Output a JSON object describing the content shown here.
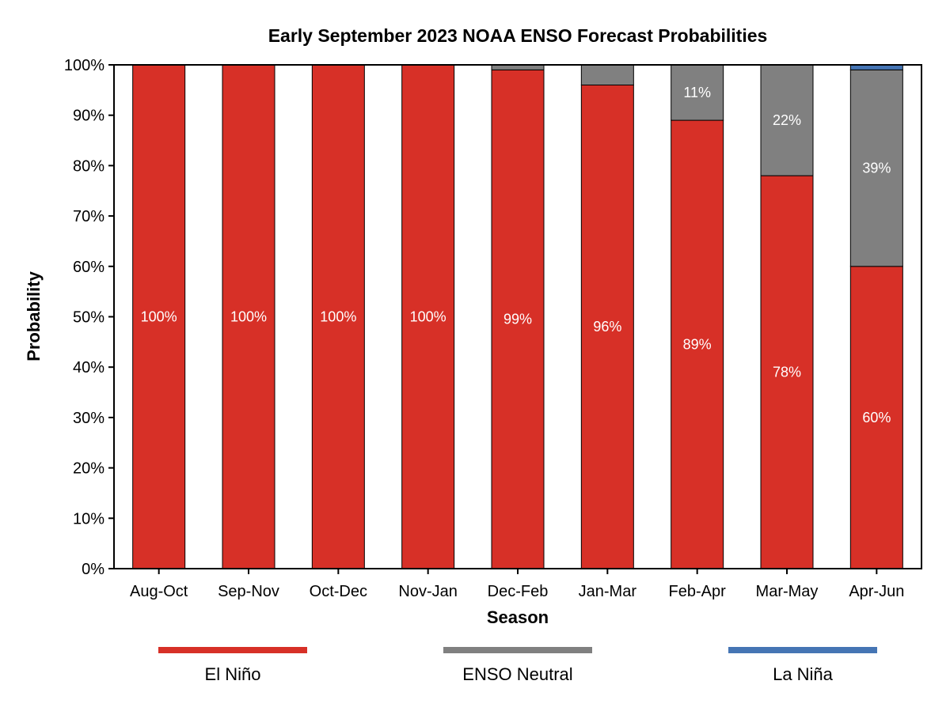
{
  "chart_data": {
    "type": "bar",
    "stacked": true,
    "title": "Early September 2023 NOAA ENSO Forecast Probabilities",
    "xlabel": "Season",
    "ylabel": "Probability",
    "ylim": [
      0,
      100
    ],
    "yticks": [
      0,
      10,
      20,
      30,
      40,
      50,
      60,
      70,
      80,
      90,
      100
    ],
    "ytick_labels": [
      "0%",
      "10%",
      "20%",
      "30%",
      "40%",
      "50%",
      "60%",
      "70%",
      "80%",
      "90%",
      "100%"
    ],
    "categories": [
      "Aug-Oct",
      "Sep-Nov",
      "Oct-Dec",
      "Nov-Jan",
      "Dec-Feb",
      "Jan-Mar",
      "Feb-Apr",
      "Mar-May",
      "Apr-Jun"
    ],
    "series": [
      {
        "name": "El Niño",
        "color": "#d73027",
        "values": [
          100,
          100,
          100,
          100,
          99,
          96,
          89,
          78,
          60
        ],
        "labels": [
          "100%",
          "100%",
          "100%",
          "100%",
          "99%",
          "96%",
          "89%",
          "78%",
          "60%"
        ]
      },
      {
        "name": "ENSO Neutral",
        "color": "#808080",
        "values": [
          0,
          0,
          0,
          0,
          1,
          4,
          11,
          22,
          39
        ],
        "labels": [
          "",
          "",
          "",
          "",
          "",
          "",
          "11%",
          "22%",
          "39%"
        ]
      },
      {
        "name": "La Niña",
        "color": "#4575b4",
        "values": [
          0,
          0,
          0,
          0,
          0,
          0,
          0,
          0,
          1
        ],
        "labels": [
          "",
          "",
          "",
          "",
          "",
          "",
          "",
          "",
          ""
        ]
      }
    ],
    "grid": false,
    "legend_position": "bottom"
  }
}
